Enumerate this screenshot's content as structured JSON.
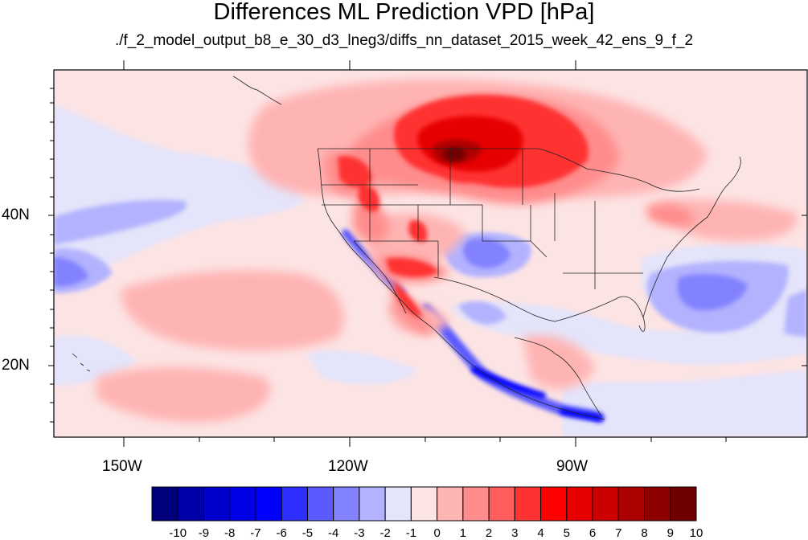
{
  "header": {
    "title": "Differences ML Prediction VPD [hPa]",
    "subtitle": "./f_2_model_output_b8_e_30_d3_lneg3/diffs_nn_dataset_2015_week_42_ens_9_f_2"
  },
  "axes": {
    "lon_labels": [
      "150W",
      "120W",
      "90W"
    ],
    "lat_labels": [
      "40N",
      "20N"
    ]
  },
  "colorbar": {
    "labels": [
      "-10",
      "-9",
      "-8",
      "-7",
      "-6",
      "-5",
      "-4",
      "-3",
      "-2",
      "-1",
      "0",
      "1",
      "2",
      "3",
      "4",
      "5",
      "6",
      "7",
      "8",
      "9",
      "10"
    ],
    "colors": [
      "#00007a",
      "#0000a8",
      "#0000cc",
      "#0000e6",
      "#0000ff",
      "#2e2eff",
      "#5a5aff",
      "#8282ff",
      "#b2b2ff",
      "#e4e4fa",
      "#fde4e4",
      "#ffb4b4",
      "#ff8c8c",
      "#ff5c5c",
      "#ff3232",
      "#ff0000",
      "#e60000",
      "#cc0000",
      "#ad0000",
      "#8c0000",
      "#700000"
    ]
  }
}
